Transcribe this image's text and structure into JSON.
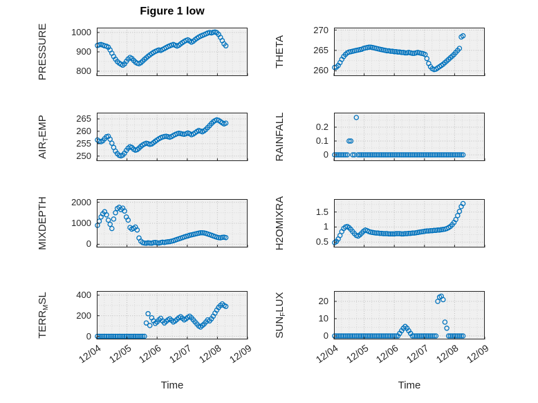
{
  "figure": {
    "title": "Figure 1 low",
    "xlabel": "Time",
    "marker_color": "#0072BD",
    "axis_color": "#262626",
    "plot_bg": "#f0f0f0",
    "grid_major": "#bcbcbc",
    "grid_minor": "#d8d8d8"
  },
  "x_axis": {
    "xlim": [
      4,
      9
    ],
    "tick_values": [
      4,
      5,
      6,
      7,
      8,
      9
    ],
    "tick_labels": [
      "12/04",
      "12/05",
      "12/06",
      "12/07",
      "12/08",
      "12/09"
    ]
  },
  "x_common": [
    4.02,
    4.08,
    4.14,
    4.2,
    4.26,
    4.32,
    4.38,
    4.44,
    4.5,
    4.56,
    4.62,
    4.68,
    4.74,
    4.8,
    4.86,
    4.92,
    4.98,
    5.04,
    5.1,
    5.16,
    5.22,
    5.28,
    5.34,
    5.4,
    5.46,
    5.52,
    5.58,
    5.64,
    5.7,
    5.76,
    5.82,
    5.88,
    5.94,
    6,
    6.06,
    6.12,
    6.18,
    6.24,
    6.3,
    6.36,
    6.42,
    6.48,
    6.54,
    6.6,
    6.66,
    6.72,
    6.78,
    6.84,
    6.9,
    6.96,
    7.02,
    7.08,
    7.14,
    7.2,
    7.26,
    7.32,
    7.38,
    7.44,
    7.5,
    7.56,
    7.62,
    7.68,
    7.74,
    7.8,
    7.86,
    7.92,
    7.98,
    8.04,
    8.1,
    8.16,
    8.22,
    8.28
  ],
  "chart_data": [
    {
      "id": "pressure",
      "type": "scatter",
      "ylabel_parts": [
        {
          "t": "PRESSURE",
          "sub": false
        }
      ],
      "ylim": [
        775,
        1025
      ],
      "yticks": [
        800,
        900,
        1000
      ],
      "ytick_labels": [
        "800",
        "900",
        "1000"
      ],
      "y": [
        933,
        936,
        938,
        935,
        931,
        929,
        924,
        910,
        893,
        876,
        862,
        850,
        842,
        836,
        831,
        838,
        851,
        863,
        871,
        866,
        856,
        847,
        841,
        839,
        844,
        852,
        861,
        869,
        877,
        884,
        891,
        897,
        902,
        906,
        910,
        907,
        912,
        917,
        922,
        927,
        931,
        935,
        938,
        934,
        930,
        934,
        941,
        948,
        954,
        959,
        962,
        956,
        950,
        955,
        963,
        970,
        976,
        981,
        985,
        989,
        993,
        997,
        1000,
        998,
        1001,
        1003,
        999,
        990,
        975,
        958,
        941,
        931
      ]
    },
    {
      "id": "air-temp",
      "type": "scatter",
      "ylabel_parts": [
        {
          "t": "AIR",
          "sub": false
        },
        {
          "t": "T",
          "sub": true
        },
        {
          "t": "EMP",
          "sub": false
        }
      ],
      "ylim": [
        248,
        267.5
      ],
      "yticks": [
        250,
        255,
        260,
        265
      ],
      "ytick_labels": [
        "250",
        "255",
        "260",
        "265"
      ],
      "y": [
        256.5,
        256,
        255.8,
        256.2,
        257,
        257.8,
        258,
        256.8,
        255.2,
        253.5,
        252,
        251,
        250.3,
        250.1,
        250.4,
        251.2,
        252.3,
        253.2,
        253.8,
        253.5,
        252.8,
        252.4,
        252.6,
        253.2,
        253.9,
        254.5,
        254.9,
        255.2,
        255,
        254.7,
        254.9,
        255.4,
        256,
        256.5,
        257,
        257.4,
        257.7,
        257.9,
        258,
        257.8,
        257.6,
        257.9,
        258.3,
        258.7,
        259,
        259.2,
        259.1,
        258.9,
        258.8,
        259,
        259.3,
        259,
        258.6,
        258.9,
        259.4,
        259.9,
        260.3,
        260.1,
        259.8,
        260.2,
        260.8,
        261.5,
        262.3,
        263.1,
        263.8,
        264.3,
        264.6,
        264.4,
        263.9,
        263.4,
        263,
        263.3
      ]
    },
    {
      "id": "mixdepth",
      "type": "scatter",
      "ylabel_parts": [
        {
          "t": "MIXDEPTH",
          "sub": false
        }
      ],
      "ylim": [
        -150,
        2150
      ],
      "yticks": [
        0,
        1000,
        2000
      ],
      "ytick_labels": [
        "0",
        "1000",
        "2000"
      ],
      "y": [
        900,
        1100,
        1300,
        1450,
        1550,
        1400,
        1150,
        950,
        750,
        1200,
        1500,
        1700,
        1760,
        1650,
        1720,
        1580,
        1300,
        1150,
        800,
        720,
        760,
        820,
        680,
        300,
        150,
        80,
        60,
        50,
        70,
        60,
        50,
        80,
        90,
        70,
        60,
        80,
        100,
        90,
        110,
        120,
        130,
        150,
        170,
        200,
        230,
        260,
        290,
        320,
        350,
        380,
        400,
        430,
        450,
        470,
        490,
        510,
        530,
        545,
        550,
        540,
        520,
        490,
        460,
        430,
        400,
        370,
        340,
        320,
        310,
        330,
        340,
        320
      ]
    },
    {
      "id": "terr-msl",
      "type": "scatter",
      "ylabel_parts": [
        {
          "t": "TERR",
          "sub": false
        },
        {
          "t": "M",
          "sub": true
        },
        {
          "t": "SL",
          "sub": false
        }
      ],
      "ylim": [
        -30,
        440
      ],
      "yticks": [
        0,
        200,
        400
      ],
      "ytick_labels": [
        "0",
        "200",
        "400"
      ],
      "y": [
        0,
        0,
        0,
        0,
        0,
        0,
        0,
        0,
        0,
        0,
        0,
        0,
        0,
        0,
        0,
        0,
        0,
        0,
        0,
        0,
        0,
        0,
        0,
        0,
        0,
        0,
        0,
        130,
        220,
        105,
        180,
        150,
        125,
        140,
        160,
        175,
        150,
        130,
        145,
        160,
        170,
        155,
        140,
        150,
        165,
        180,
        190,
        175,
        160,
        170,
        185,
        195,
        180,
        160,
        140,
        120,
        100,
        90,
        105,
        120,
        140,
        160,
        150,
        170,
        195,
        225,
        255,
        280,
        300,
        315,
        300,
        290
      ]
    },
    {
      "id": "theta",
      "type": "scatter",
      "ylabel_parts": [
        {
          "t": "THETA",
          "sub": false
        }
      ],
      "ylim": [
        258.7,
        270.6
      ],
      "yticks": [
        260,
        265,
        270
      ],
      "ytick_labels": [
        "260",
        "265",
        "270"
      ],
      "y": [
        260.8,
        260.9,
        261.3,
        262,
        262.8,
        263.5,
        264,
        264.4,
        264.6,
        264.7,
        264.8,
        264.9,
        265,
        265.1,
        265.2,
        265.3,
        265.5,
        265.6,
        265.7,
        265.8,
        265.8,
        265.7,
        265.6,
        265.5,
        265.4,
        265.3,
        265.2,
        265.1,
        265,
        264.9,
        264.9,
        264.8,
        264.8,
        264.7,
        264.7,
        264.6,
        264.6,
        264.5,
        264.5,
        264.4,
        264.4,
        264.5,
        264.4,
        264.3,
        264.3,
        264.4,
        264.5,
        264.4,
        264.3,
        264.2,
        264,
        263,
        261.8,
        261,
        260.5,
        260.3,
        260.4,
        260.7,
        261,
        261.3,
        261.6,
        262,
        262.4,
        262.8,
        263.2,
        263.6,
        264,
        264.5,
        265,
        265.5,
        268.3,
        268.6
      ]
    },
    {
      "id": "rainfall",
      "type": "scatter",
      "ylabel_parts": [
        {
          "t": "RAINFALL",
          "sub": false
        }
      ],
      "ylim": [
        -0.045,
        0.305
      ],
      "yticks": [
        0,
        0.1,
        0.2
      ],
      "ytick_labels": [
        "0",
        "0.1",
        "0.2"
      ],
      "y": [
        0,
        0,
        0,
        0,
        0,
        0,
        0,
        0,
        0.1,
        0.1,
        0,
        0,
        0.27,
        0,
        0,
        0,
        0,
        0,
        0,
        0,
        0,
        0,
        0,
        0,
        0,
        0,
        0,
        0,
        0,
        0,
        0,
        0,
        0,
        0,
        0,
        0,
        0,
        0,
        0,
        0,
        0,
        0,
        0,
        0,
        0,
        0,
        0,
        0,
        0,
        0,
        0,
        0,
        0,
        0,
        0,
        0,
        0,
        0,
        0,
        0,
        0,
        0,
        0,
        0,
        0,
        0,
        0,
        0,
        0,
        0,
        0,
        0
      ]
    },
    {
      "id": "h2omixra",
      "type": "scatter",
      "ylabel_parts": [
        {
          "t": "H2OMIXRA",
          "sub": false
        }
      ],
      "ylim": [
        0.32,
        1.93
      ],
      "yticks": [
        0.5,
        1,
        1.5
      ],
      "ytick_labels": [
        "0.5",
        "1",
        "1.5"
      ],
      "y": [
        0.48,
        0.52,
        0.6,
        0.72,
        0.85,
        0.95,
        1,
        1.02,
        0.98,
        0.92,
        0.85,
        0.78,
        0.72,
        0.7,
        0.74,
        0.8,
        0.86,
        0.9,
        0.88,
        0.85,
        0.83,
        0.82,
        0.81,
        0.8,
        0.8,
        0.79,
        0.79,
        0.78,
        0.78,
        0.78,
        0.77,
        0.77,
        0.77,
        0.77,
        0.78,
        0.78,
        0.78,
        0.77,
        0.77,
        0.78,
        0.78,
        0.79,
        0.79,
        0.8,
        0.8,
        0.81,
        0.82,
        0.83,
        0.84,
        0.85,
        0.86,
        0.87,
        0.87,
        0.88,
        0.88,
        0.89,
        0.89,
        0.9,
        0.9,
        0.91,
        0.92,
        0.93,
        0.95,
        0.98,
        1.02,
        1.08,
        1.15,
        1.25,
        1.38,
        1.52,
        1.68,
        1.78
      ]
    },
    {
      "id": "sun-flux",
      "type": "scatter",
      "ylabel_parts": [
        {
          "t": "SUN",
          "sub": false
        },
        {
          "t": "F",
          "sub": true
        },
        {
          "t": "LUX",
          "sub": false
        }
      ],
      "ylim": [
        -2,
        26
      ],
      "yticks": [
        0,
        10,
        20
      ],
      "ytick_labels": [
        "0",
        "10",
        "20"
      ],
      "y": [
        0,
        0,
        0,
        0,
        0,
        0,
        0,
        0,
        0,
        0,
        0,
        0,
        0,
        0,
        0,
        0,
        0,
        0,
        0,
        0,
        0,
        0,
        0,
        0,
        0,
        0,
        0,
        0,
        0,
        0,
        0,
        0,
        0,
        0,
        0,
        0,
        1.5,
        3,
        4.5,
        5.5,
        4.5,
        3,
        1.5,
        0,
        0,
        0,
        0,
        0,
        0,
        0,
        0,
        0,
        0,
        0,
        0,
        0,
        0,
        20,
        22.5,
        23,
        21,
        8,
        4.5,
        0,
        0,
        0,
        0,
        0,
        0,
        0,
        0,
        0
      ]
    }
  ]
}
